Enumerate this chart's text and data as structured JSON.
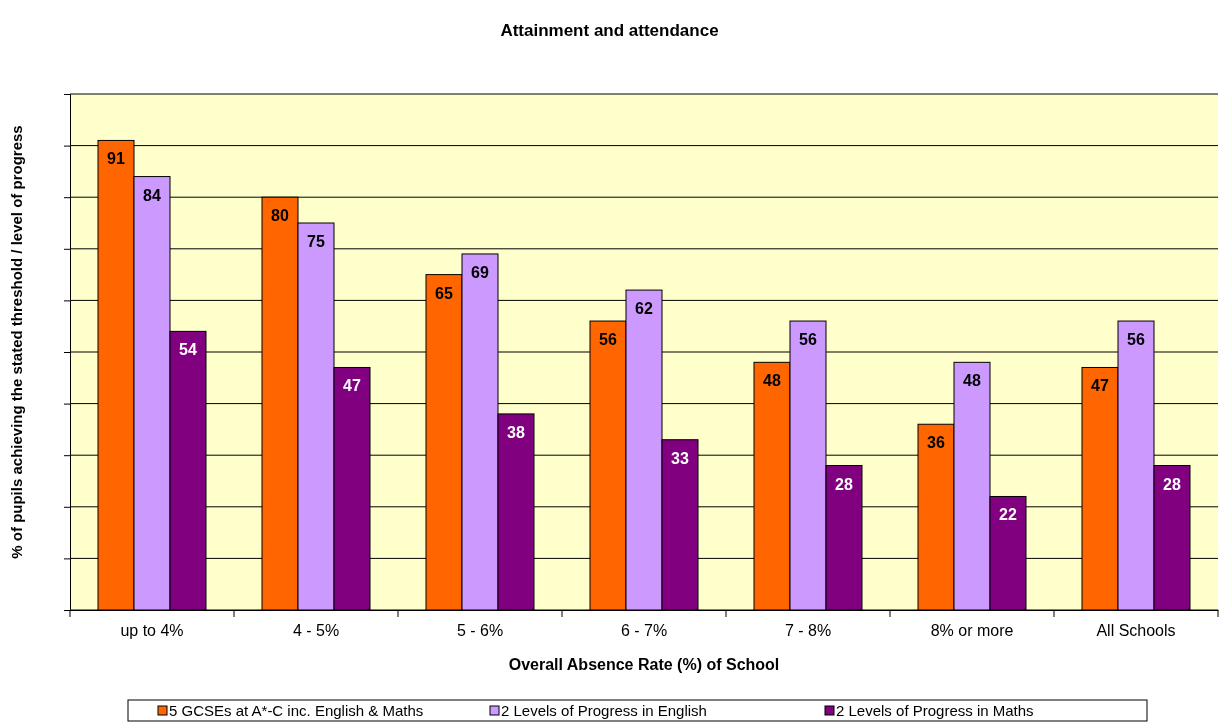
{
  "chart_data": {
    "type": "bar",
    "title": "Attainment and attendance",
    "xlabel": "Overall Absence Rate (%) of School",
    "ylabel": "% of pupils achieving the stated threshold / level of progress",
    "categories": [
      "up to 4%",
      "4 - 5%",
      "5 - 6%",
      "6 - 7%",
      "7 - 8%",
      "8% or more",
      "All Schools"
    ],
    "series": [
      {
        "name": "5 GCSEs at A*-C inc. English & Maths",
        "color": "#ff6600",
        "values": [
          91,
          80,
          65,
          56,
          48,
          36,
          47
        ]
      },
      {
        "name": "2 Levels of Progress in English",
        "color": "#cc99ff",
        "values": [
          84,
          75,
          69,
          62,
          56,
          48,
          56
        ]
      },
      {
        "name": "2 Levels of Progress in Maths",
        "color": "#800080",
        "values": [
          54,
          47,
          38,
          33,
          28,
          22,
          28
        ]
      }
    ],
    "ylim": [
      0,
      100
    ],
    "yticks": [
      {
        "value": 0,
        "label": null
      },
      {
        "value": 10,
        "label": null
      },
      {
        "value": 20,
        "label": null
      },
      {
        "value": 30,
        "label": null
      },
      {
        "value": 40,
        "label": null
      },
      {
        "value": 50,
        "label": null
      },
      {
        "value": 60,
        "label": null
      },
      {
        "value": 70,
        "label": null
      },
      {
        "value": 80,
        "label": null
      },
      {
        "value": 90,
        "label": null
      },
      {
        "value": 100,
        "label": null
      }
    ],
    "tick_labels": "x",
    "grid": "y",
    "legend": "bottom",
    "data_labels": true
  }
}
